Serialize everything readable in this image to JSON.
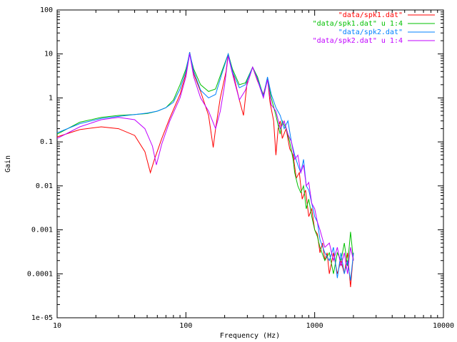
{
  "chart_data": {
    "type": "line",
    "title": "",
    "xlabel": "Frequency (Hz)",
    "ylabel": "Gain",
    "x_scale": "log",
    "y_scale": "log",
    "xlim": [
      10,
      10000
    ],
    "ylim": [
      1e-05,
      100
    ],
    "x_ticks": [
      {
        "value": 10,
        "label": "10"
      },
      {
        "value": 100,
        "label": "100"
      },
      {
        "value": 1000,
        "label": "1000"
      },
      {
        "value": 10000,
        "label": "10000"
      }
    ],
    "y_ticks": [
      {
        "value": 100,
        "label": "100"
      },
      {
        "value": 10,
        "label": "10"
      },
      {
        "value": 1,
        "label": "1"
      },
      {
        "value": 0.1,
        "label": "0.1"
      },
      {
        "value": 0.01,
        "label": "0.01"
      },
      {
        "value": 0.001,
        "label": "0.001"
      },
      {
        "value": 0.0001,
        "label": "0.0001"
      },
      {
        "value": 1e-05,
        "label": "1e-05"
      }
    ],
    "legend_position": "top-right",
    "grid": false,
    "series": [
      {
        "name": "\"data/spk1.dat\"",
        "color": "#ff0000",
        "x": [
          10,
          15,
          22,
          30,
          40,
          48,
          53,
          57,
          65,
          75,
          90,
          100,
          107,
          115,
          130,
          150,
          163,
          170,
          185,
          205,
          213,
          230,
          260,
          280,
          300,
          330,
          360,
          400,
          430,
          450,
          480,
          500,
          520,
          540,
          560,
          600,
          640,
          680,
          720,
          760,
          800,
          850,
          900,
          950,
          1000,
          1050,
          1100,
          1150,
          1200,
          1250,
          1300,
          1400,
          1500,
          1600,
          1700,
          1800,
          1900,
          2000
        ],
        "y": [
          0.13,
          0.19,
          0.22,
          0.2,
          0.14,
          0.06,
          0.02,
          0.04,
          0.12,
          0.35,
          1.2,
          3.5,
          11,
          3.5,
          1.4,
          0.4,
          0.075,
          0.2,
          1.0,
          4.0,
          10,
          4.2,
          0.9,
          0.4,
          2.5,
          5,
          2.4,
          1.2,
          2.8,
          0.8,
          0.3,
          0.05,
          0.2,
          0.3,
          0.12,
          0.2,
          0.07,
          0.05,
          0.015,
          0.02,
          0.005,
          0.008,
          0.002,
          0.003,
          0.001,
          0.0008,
          0.0003,
          0.0005,
          0.0002,
          0.0003,
          0.0001,
          0.0003,
          0.0001,
          0.0002,
          0.0001,
          0.0003,
          5e-05,
          0.0003
        ]
      },
      {
        "name": "\"data/spk1.dat\" u 1:4",
        "color": "#00c000",
        "x": [
          10,
          15,
          22,
          30,
          40,
          50,
          60,
          70,
          80,
          90,
          100,
          107,
          115,
          130,
          150,
          170,
          190,
          213,
          230,
          260,
          290,
          330,
          360,
          400,
          430,
          460,
          500,
          540,
          560,
          600,
          640,
          680,
          700,
          740,
          780,
          820,
          860,
          900,
          950,
          1000,
          1050,
          1100,
          1200,
          1300,
          1400,
          1500,
          1600,
          1700,
          1800,
          1900,
          2000
        ],
        "y": [
          0.15,
          0.28,
          0.36,
          0.4,
          0.42,
          0.44,
          0.5,
          0.6,
          0.9,
          2.0,
          4.5,
          10,
          4.5,
          2.0,
          1.4,
          1.6,
          4.0,
          10,
          4.5,
          2.0,
          2.2,
          5,
          3.0,
          1.1,
          2.8,
          1.0,
          0.4,
          0.15,
          0.3,
          0.2,
          0.1,
          0.04,
          0.02,
          0.01,
          0.007,
          0.01,
          0.003,
          0.005,
          0.002,
          0.001,
          0.0007,
          0.0004,
          0.0002,
          0.0003,
          0.0001,
          0.0003,
          0.0002,
          0.0005,
          0.00015,
          0.0009,
          0.0002
        ]
      },
      {
        "name": "\"data/spk2.dat\"",
        "color": "#0080ff",
        "x": [
          10,
          15,
          22,
          30,
          40,
          50,
          60,
          70,
          80,
          90,
          100,
          107,
          115,
          130,
          150,
          170,
          190,
          213,
          230,
          260,
          290,
          330,
          360,
          400,
          430,
          460,
          500,
          540,
          580,
          620,
          660,
          700,
          740,
          780,
          820,
          860,
          900,
          950,
          1000,
          1050,
          1100,
          1200,
          1300,
          1400,
          1500,
          1600,
          1700,
          1800,
          1900,
          2000
        ],
        "y": [
          0.16,
          0.26,
          0.34,
          0.38,
          0.42,
          0.45,
          0.5,
          0.6,
          0.8,
          1.6,
          4.0,
          11,
          4.0,
          1.5,
          1.0,
          1.2,
          3.5,
          10,
          4.0,
          1.7,
          2.0,
          5,
          2.7,
          1.1,
          3.0,
          1.2,
          0.6,
          0.4,
          0.2,
          0.3,
          0.1,
          0.05,
          0.03,
          0.02,
          0.04,
          0.01,
          0.008,
          0.004,
          0.002,
          0.0015,
          0.0006,
          0.0003,
          0.0002,
          0.0004,
          8e-05,
          0.0003,
          0.0001,
          0.0002,
          7e-05,
          0.0003
        ]
      },
      {
        "name": "\"data/spk2.dat\" u 1:4",
        "color": "#c000ff",
        "x": [
          10,
          15,
          22,
          30,
          40,
          48,
          55,
          59,
          65,
          75,
          90,
          100,
          107,
          115,
          130,
          150,
          170,
          185,
          200,
          213,
          230,
          260,
          290,
          330,
          360,
          400,
          430,
          460,
          500,
          540,
          580,
          620,
          660,
          700,
          740,
          780,
          820,
          860,
          900,
          950,
          1000,
          1050,
          1100,
          1200,
          1300,
          1400,
          1500,
          1600,
          1700,
          1800,
          1900,
          2000
        ],
        "y": [
          0.12,
          0.22,
          0.32,
          0.36,
          0.32,
          0.2,
          0.08,
          0.03,
          0.09,
          0.3,
          1.0,
          3.0,
          10,
          3.0,
          1.0,
          0.5,
          0.2,
          0.5,
          2.0,
          9,
          3.5,
          0.9,
          1.5,
          5,
          2.5,
          1.0,
          2.6,
          0.7,
          0.5,
          0.2,
          0.3,
          0.15,
          0.1,
          0.04,
          0.05,
          0.02,
          0.03,
          0.01,
          0.012,
          0.004,
          0.003,
          0.0015,
          0.001,
          0.0004,
          0.0005,
          0.0002,
          0.0004,
          0.00015,
          0.0003,
          0.0001,
          0.0004,
          0.0002
        ]
      }
    ]
  }
}
